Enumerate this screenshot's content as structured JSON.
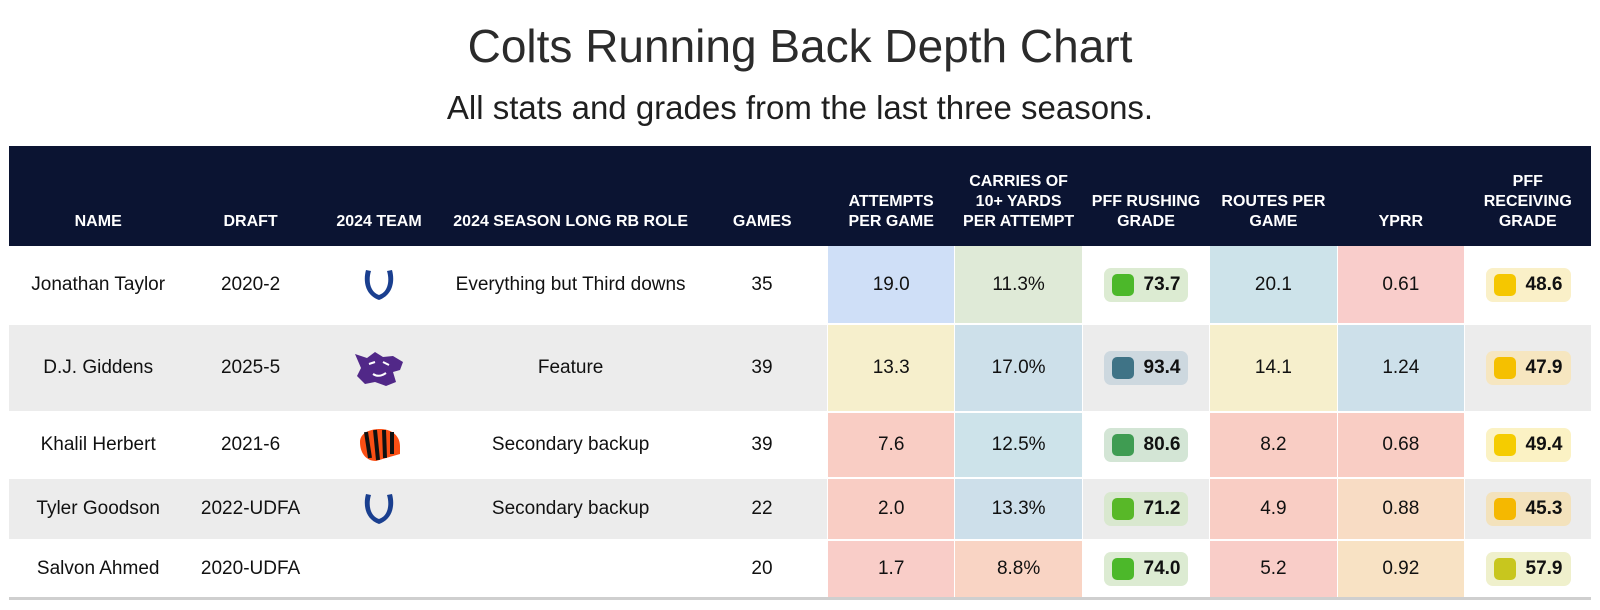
{
  "title": "Colts Running Back Depth Chart",
  "subtitle": "All stats and grades from the last three seasons.",
  "colors": {
    "header_bg": "#0b1432",
    "colts_blue": "#1a3f8f",
    "kstate_purple": "#512888",
    "bengals_orange": "#fb4f14"
  },
  "columns": [
    "NAME",
    "DRAFT",
    "2024 TEAM",
    "2024 SEASON LONG RB ROLE",
    "GAMES",
    "ATTEMPTS PER GAME",
    "CARRIES OF 10+ YARDS PER ATTEMPT",
    "PFF RUSHING GRADE",
    "ROUTES PER GAME",
    "YPRR",
    "PFF RECEIVING GRADE"
  ],
  "chart_data": {
    "type": "table",
    "title": "Colts Running Back Depth Chart",
    "subtitle": "All stats and grades from the last three seasons.",
    "rows": [
      {
        "name": "Jonathan Taylor",
        "draft": "2020-2",
        "team_icon": "colts-horseshoe-icon",
        "role": "Everything but Third downs",
        "games": "35",
        "att": "19.0",
        "att_bg": "#cfdff7",
        "c10": "11.3%",
        "c10_bg": "#dfead7",
        "rush": "73.7",
        "rush_sq": "#4cb82a",
        "rush_bg": "#dcebd2",
        "routes": "20.1",
        "routes_bg": "#cde3ea",
        "yprr": "0.61",
        "yprr_bg": "#f9cdcb",
        "recv": "48.6",
        "recv_sq": "#f5c700",
        "recv_bg": "#faf0c8"
      },
      {
        "name": "D.J. Giddens",
        "draft": "2025-5",
        "team_icon": "kansas-state-wildcat-icon",
        "role": "Feature",
        "games": "39",
        "att": "13.3",
        "att_bg": "#f6efcc",
        "c10": "17.0%",
        "c10_bg": "#cde0ea",
        "rush": "93.4",
        "rush_sq": "#3f7386",
        "rush_bg": "#cdd8df",
        "routes": "14.1",
        "routes_bg": "#f6efcc",
        "yprr": "1.24",
        "yprr_bg": "#cde0ea",
        "recv": "47.9",
        "recv_sq": "#f5c000",
        "recv_bg": "#f6e6c0"
      },
      {
        "name": "Khalil Herbert",
        "draft": "2021-6",
        "team_icon": "bengals-helmet-icon",
        "role": "Secondary backup",
        "games": "39",
        "att": "7.6",
        "att_bg": "#f9cdc4",
        "c10": "12.5%",
        "c10_bg": "#cde3ea",
        "rush": "80.6",
        "rush_sq": "#3f9c52",
        "rush_bg": "#d3e5d5",
        "routes": "8.2",
        "routes_bg": "#f9cdc4",
        "yprr": "0.68",
        "yprr_bg": "#f9cdc4",
        "recv": "49.4",
        "recv_sq": "#f5cc00",
        "recv_bg": "#fbf2c4"
      },
      {
        "name": "Tyler Goodson",
        "draft": "2022-UDFA",
        "team_icon": "colts-horseshoe-icon",
        "role": "Secondary backup",
        "games": "22",
        "att": "2.0",
        "att_bg": "#f9cdc4",
        "c10": "13.3%",
        "c10_bg": "#cddfea",
        "rush": "71.2",
        "rush_sq": "#58b828",
        "rush_bg": "#d9e8cf",
        "routes": "4.9",
        "routes_bg": "#f9cdc4",
        "yprr": "0.88",
        "yprr_bg": "#f8dcc4",
        "recv": "45.3",
        "recv_sq": "#f5b800",
        "recv_bg": "#f3e2bc"
      },
      {
        "name": "Salvon Ahmed",
        "draft": "2020-UDFA",
        "team_icon": "",
        "role": "",
        "games": "20",
        "att": "1.7",
        "att_bg": "#f9cdc8",
        "c10": "8.8%",
        "c10_bg": "#f9d4c4",
        "rush": "74.0",
        "rush_sq": "#4cb82a",
        "rush_bg": "#dcebd2",
        "routes": "5.2",
        "routes_bg": "#f9cdc8",
        "yprr": "0.92",
        "yprr_bg": "#f8e2c4",
        "recv": "57.9",
        "recv_sq": "#c8c61e",
        "recv_bg": "#eff0cc"
      }
    ]
  }
}
